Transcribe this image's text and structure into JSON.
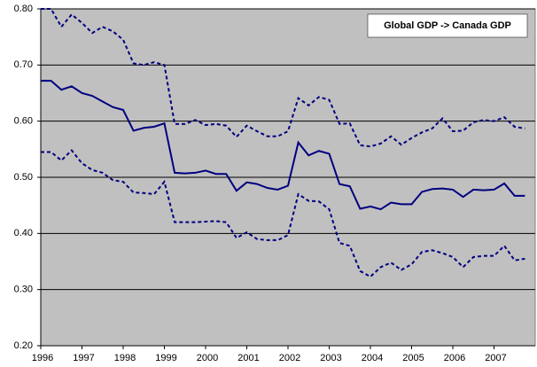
{
  "chart_data": {
    "type": "line",
    "title": "Global GDP -> Canada GDP",
    "x": [
      1996,
      1996.25,
      1996.5,
      1996.75,
      1997,
      1997.25,
      1997.5,
      1997.75,
      1998,
      1998.25,
      1998.5,
      1998.75,
      1999,
      1999.25,
      1999.5,
      1999.75,
      2000,
      2000.25,
      2000.5,
      2000.75,
      2001,
      2001.25,
      2001.5,
      2001.75,
      2002,
      2002.25,
      2002.5,
      2002.75,
      2003,
      2003.25,
      2003.5,
      2003.75,
      2004,
      2004.25,
      2004.5,
      2004.75,
      2005,
      2005.25,
      2005.5,
      2005.75,
      2006,
      2006.25,
      2006.5,
      2006.75,
      2007,
      2007.25,
      2007.5,
      2007.75
    ],
    "series": [
      {
        "color": "#000080",
        "dash": false,
        "values": [
          0.672,
          0.672,
          0.656,
          0.662,
          0.65,
          0.645,
          0.635,
          0.625,
          0.62,
          0.583,
          0.588,
          0.59,
          0.596,
          0.508,
          0.507,
          0.508,
          0.512,
          0.506,
          0.506,
          0.476,
          0.491,
          0.488,
          0.481,
          0.478,
          0.485,
          0.562,
          0.539,
          0.547,
          0.542,
          0.488,
          0.484,
          0.444,
          0.448,
          0.443,
          0.455,
          0.452,
          0.452,
          0.474,
          0.479,
          0.48,
          0.478,
          0.465,
          0.478,
          0.477,
          0.478,
          0.489,
          0.467,
          0.467
        ]
      },
      {
        "color": "#000080",
        "dash": true,
        "values": [
          0.8,
          0.8,
          0.768,
          0.79,
          0.775,
          0.757,
          0.768,
          0.76,
          0.745,
          0.703,
          0.7,
          0.705,
          0.7,
          0.595,
          0.595,
          0.602,
          0.593,
          0.595,
          0.592,
          0.572,
          0.592,
          0.582,
          0.573,
          0.573,
          0.582,
          0.641,
          0.628,
          0.643,
          0.638,
          0.595,
          0.596,
          0.557,
          0.555,
          0.56,
          0.573,
          0.558,
          0.57,
          0.58,
          0.587,
          0.605,
          0.582,
          0.583,
          0.598,
          0.602,
          0.6,
          0.607,
          0.59,
          0.587
        ]
      },
      {
        "color": "#000080",
        "dash": true,
        "values": [
          0.545,
          0.545,
          0.53,
          0.548,
          0.525,
          0.513,
          0.508,
          0.495,
          0.492,
          0.473,
          0.472,
          0.47,
          0.492,
          0.42,
          0.42,
          0.42,
          0.421,
          0.422,
          0.42,
          0.392,
          0.402,
          0.39,
          0.388,
          0.388,
          0.397,
          0.47,
          0.458,
          0.457,
          0.443,
          0.383,
          0.378,
          0.333,
          0.323,
          0.34,
          0.348,
          0.335,
          0.345,
          0.367,
          0.37,
          0.365,
          0.358,
          0.34,
          0.358,
          0.36,
          0.36,
          0.378,
          0.352,
          0.355
        ]
      }
    ],
    "xlim": [
      1996,
      2008
    ],
    "xticks": [
      1996,
      1997,
      1998,
      1999,
      2000,
      2001,
      2002,
      2003,
      2004,
      2005,
      2006,
      2007
    ],
    "ylim": [
      0.2,
      0.8
    ],
    "yticks": [
      {
        "value": 0.2,
        "label": "0.20"
      },
      {
        "value": 0.3,
        "label": "0.30"
      },
      {
        "value": 0.4,
        "label": "0.40"
      },
      {
        "value": 0.5,
        "label": "0.50"
      },
      {
        "value": 0.6,
        "label": "0.60"
      },
      {
        "value": 0.7,
        "label": "0.70"
      },
      {
        "value": 0.8,
        "label": "0.80"
      }
    ],
    "grid": true,
    "plot_background": "#c0c0c0"
  }
}
